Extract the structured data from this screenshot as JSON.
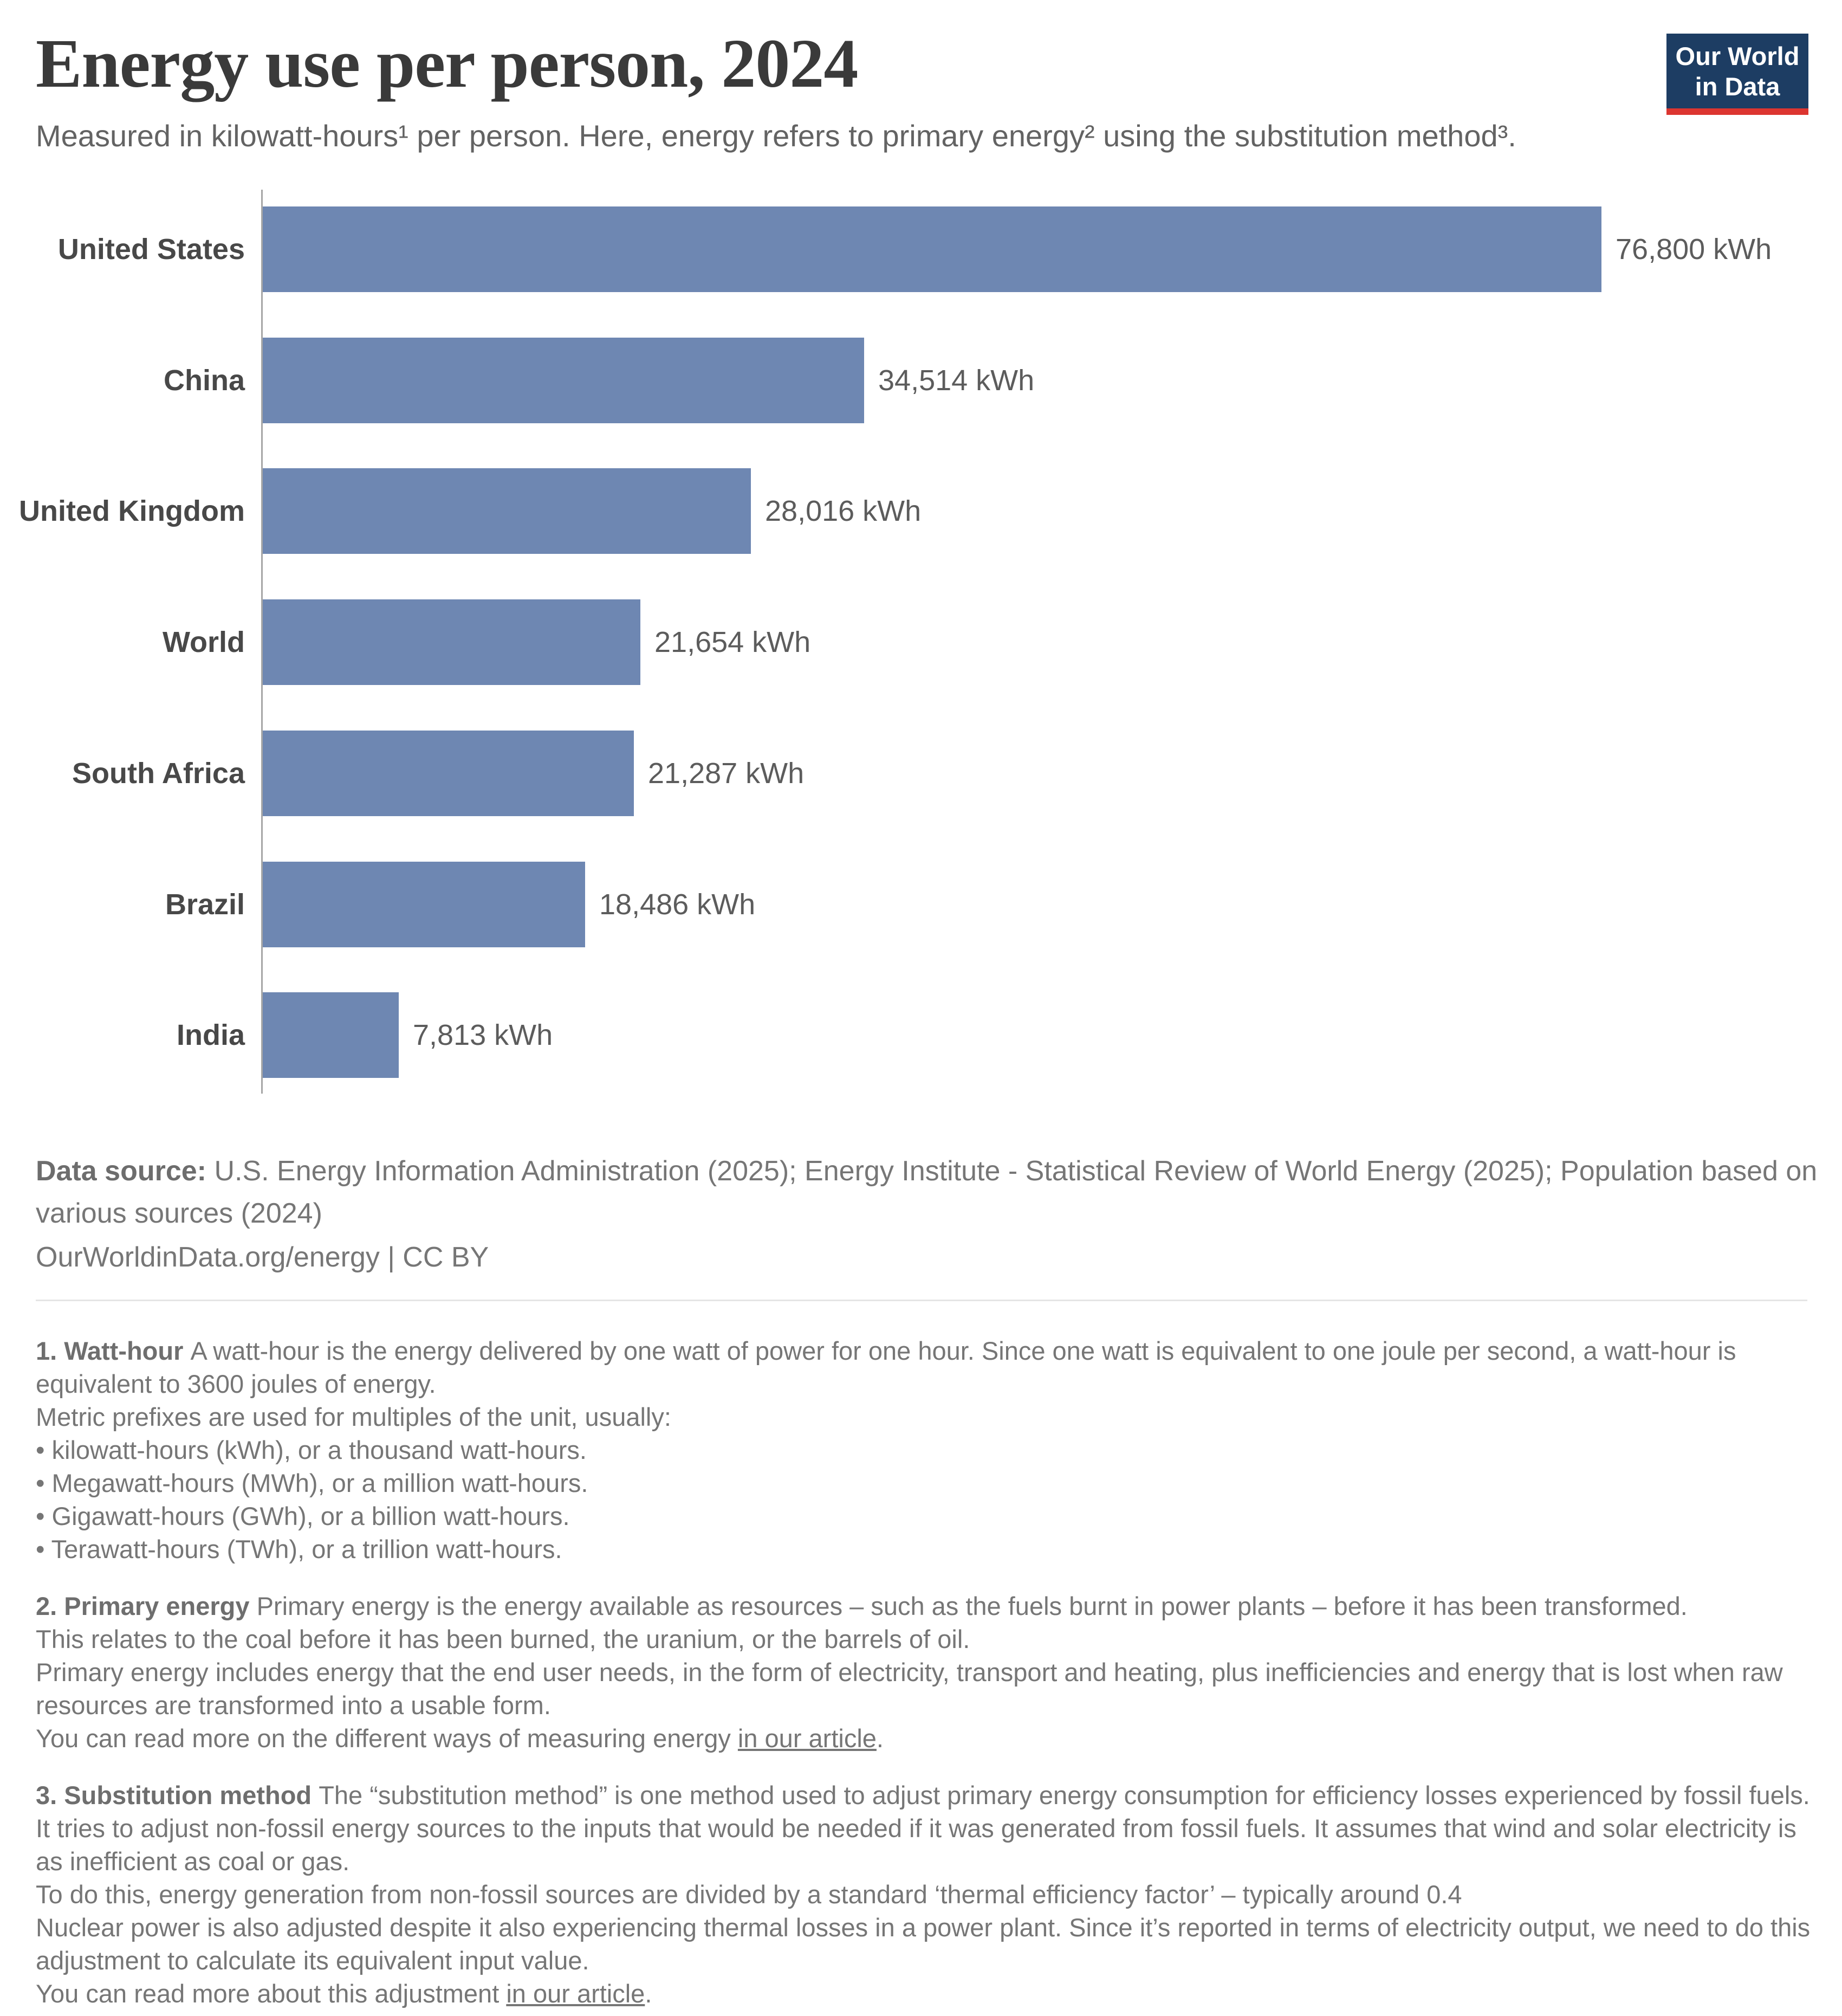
{
  "header": {
    "title": "Energy use per person, 2024",
    "subtitle": "Measured in kilowatt-hours¹ per person. Here, energy refers to primary energy² using the substitution method³.",
    "logo": {
      "line1": "Our World",
      "line2": "in Data"
    }
  },
  "chart_data": {
    "type": "bar",
    "orientation": "horizontal",
    "title": "Energy use per person, 2024",
    "unit": "kWh",
    "categories": [
      "United States",
      "China",
      "United Kingdom",
      "World",
      "South Africa",
      "Brazil",
      "India"
    ],
    "values": [
      76800,
      34514,
      28016,
      21654,
      21287,
      18486,
      7813
    ],
    "value_labels": [
      "76,800 kWh",
      "34,514 kWh",
      "28,016 kWh",
      "21,654 kWh",
      "21,287 kWh",
      "18,486 kWh",
      "7,813 kWh"
    ],
    "xlim": [
      0,
      76800
    ],
    "grid": false,
    "legend": "none",
    "bar_color": "#6e87b2"
  },
  "source": {
    "label": "Data source:",
    "text": " U.S. Energy Information Administration (2025); Energy Institute - Statistical Review of World Energy (2025); Population based on various sources (2024)",
    "attribution": "OurWorldinData.org/energy | CC BY"
  },
  "footnotes": [
    {
      "label": "1. Watt-hour",
      "lines": [
        {
          "text": "A watt-hour is the energy delivered by one watt of power for one hour. Since one watt is equivalent to one joule per second, a watt-hour is equivalent to 3600 joules of energy."
        },
        {
          "text": "Metric prefixes are used for multiples of the unit, usually:"
        },
        {
          "text": "• kilowatt-hours (kWh), or a thousand watt-hours."
        },
        {
          "text": "• Megawatt-hours (MWh), or a million watt-hours."
        },
        {
          "text": "• Gigawatt-hours (GWh), or a billion watt-hours."
        },
        {
          "text": "• Terawatt-hours (TWh), or a trillion watt-hours."
        }
      ]
    },
    {
      "label": "2. Primary energy",
      "lines": [
        {
          "text": "Primary energy is the energy available as resources – such as the fuels burnt in power plants – before it has been transformed."
        },
        {
          "text": "This relates to the coal before it has been burned, the uranium, or the barrels of oil."
        },
        {
          "text": "Primary energy includes energy that the end user needs, in the form of electricity, transport and heating, plus inefficiencies and energy that is lost when raw resources are transformed into a usable form."
        },
        {
          "text": "You can read more on the different ways of measuring energy ",
          "link": "in our article",
          "suffix": "."
        }
      ]
    },
    {
      "label": "3. Substitution method",
      "lines": [
        {
          "text": "The “substitution method” is one method used to adjust primary energy consumption for efficiency losses experienced by fossil fuels. It tries to adjust non-fossil energy sources to the inputs that would be needed if it was generated from fossil fuels. It assumes that wind and solar electricity is as inefficient as coal or gas."
        },
        {
          "text": "To do this, energy generation from non-fossil sources are divided by a standard ‘thermal efficiency factor’ – typically around 0.4"
        },
        {
          "text": "Nuclear power is also adjusted despite it also experiencing thermal losses in a power plant. Since it’s reported in terms of electricity output, we need to do this adjustment to calculate its equivalent input value."
        },
        {
          "text": "You can read more about this adjustment ",
          "link": "in our article",
          "suffix": "."
        }
      ]
    }
  ],
  "colors": {
    "bar": "#6e87b2",
    "axis": "#a6a6a6",
    "logo_navy": "#1d3d63",
    "logo_red": "#dc3530",
    "title_text": "#3a3a3a",
    "body_text": "#767676"
  }
}
